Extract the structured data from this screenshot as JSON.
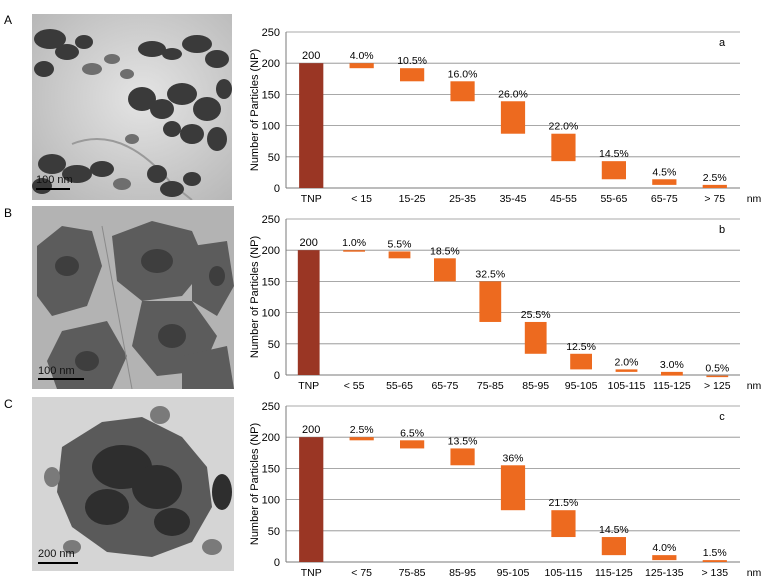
{
  "panels": [
    {
      "letter": "A",
      "scale_label": "100 nm"
    },
    {
      "letter": "B",
      "scale_label": "100 nm"
    },
    {
      "letter": "C",
      "scale_label": "200 nm"
    }
  ],
  "chart_data": [
    {
      "type": "bar",
      "subtype": "waterfall",
      "panel_tag": "a",
      "title": "",
      "ylabel": "Number of Particles (NP)",
      "xunit": "nm",
      "ylim": [
        0,
        250
      ],
      "yticks": [
        0,
        50,
        100,
        150,
        200,
        250
      ],
      "grid": true,
      "total": {
        "category": "TNP",
        "value": 200,
        "label": "200"
      },
      "categories": [
        "< 15",
        "15-25",
        "25-35",
        "35-45",
        "45-55",
        "55-65",
        "65-75",
        "> 75"
      ],
      "percent_labels": [
        "4.0%",
        "10.5%",
        "16.0%",
        "26.0%",
        "22.0%",
        "14.5%",
        "4.5%",
        "2.5%"
      ],
      "values": [
        8,
        21,
        32,
        52,
        44,
        29,
        9,
        5
      ],
      "colors": {
        "total": "#9a3624",
        "segment": "#ed6a1f"
      }
    },
    {
      "type": "bar",
      "subtype": "waterfall",
      "panel_tag": "b",
      "title": "",
      "ylabel": "Number of Particles (NP)",
      "xunit": "nm",
      "ylim": [
        0,
        250
      ],
      "yticks": [
        0,
        50,
        100,
        150,
        200,
        250
      ],
      "grid": true,
      "total": {
        "category": "TNP",
        "value": 200,
        "label": "200"
      },
      "categories": [
        "< 55",
        "55-65",
        "65-75",
        "75-85",
        "85-95",
        "95-105",
        "105-115",
        "115-125",
        "> 125"
      ],
      "percent_labels": [
        "1.0%",
        "5.5%",
        "18.5%",
        "32.5%",
        "25.5%",
        "12.5%",
        "2.0%",
        "3.0%",
        "0.5%"
      ],
      "values": [
        2,
        11,
        37,
        65,
        51,
        25,
        4,
        6,
        1
      ],
      "colors": {
        "total": "#9a3624",
        "segment": "#ed6a1f"
      }
    },
    {
      "type": "bar",
      "subtype": "waterfall",
      "panel_tag": "c",
      "title": "",
      "ylabel": "Number of Particles (NP)",
      "xunit": "nm",
      "ylim": [
        0,
        250
      ],
      "yticks": [
        0,
        50,
        100,
        150,
        200,
        250
      ],
      "grid": true,
      "total": {
        "category": "TNP",
        "value": 200,
        "label": "200"
      },
      "categories": [
        "< 75",
        "75-85",
        "85-95",
        "95-105",
        "105-115",
        "115-125",
        "125-135",
        "> 135"
      ],
      "percent_labels": [
        "2.5%",
        "6.5%",
        "13.5%",
        "36%",
        "21.5%",
        "14.5%",
        "4.0%",
        "1.5%"
      ],
      "values": [
        5,
        13,
        27,
        72,
        43,
        29,
        8,
        3
      ],
      "colors": {
        "total": "#9a3624",
        "segment": "#ed6a1f"
      }
    }
  ]
}
